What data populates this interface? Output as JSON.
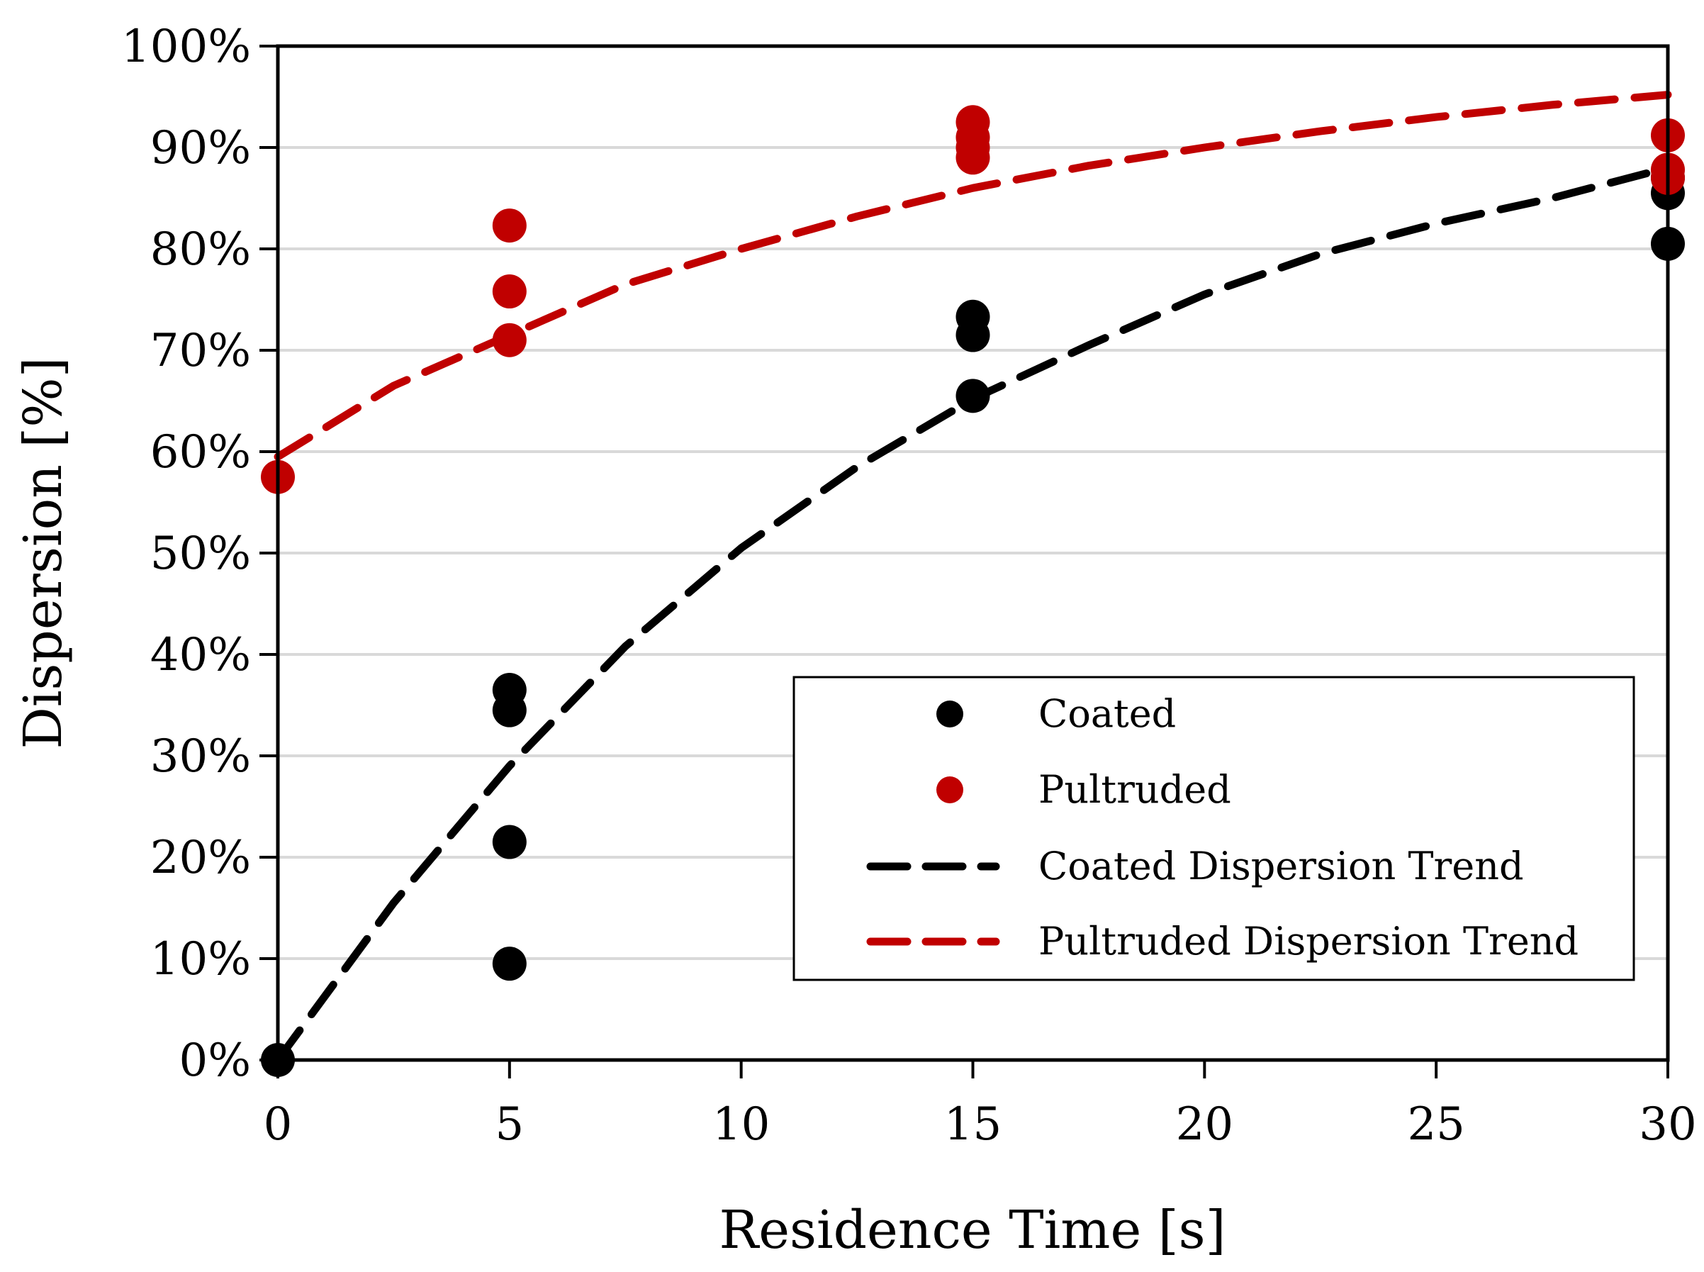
{
  "chart_data": {
    "type": "scatter",
    "title": "",
    "xlabel": "Residence Time [s]",
    "ylabel": "Dispersion [%]",
    "xlim": [
      0,
      30
    ],
    "ylim": [
      0,
      100
    ],
    "x_ticks": [
      "0",
      "5",
      "10",
      "15",
      "20",
      "25",
      "30"
    ],
    "y_ticks": [
      "0%",
      "10%",
      "20%",
      "30%",
      "40%",
      "50%",
      "60%",
      "70%",
      "80%",
      "90%",
      "100%"
    ],
    "grid": "horizontal",
    "legend_position": "bottom-right",
    "colors": {
      "coated": "#000000",
      "pultruded": "#c00000",
      "grid": "#d9d9d9"
    },
    "series": [
      {
        "name": "Coated",
        "kind": "points",
        "color": "#000000",
        "points": [
          [
            0,
            0
          ],
          [
            5,
            9.5
          ],
          [
            5,
            21.5
          ],
          [
            5,
            34.5
          ],
          [
            5,
            36.5
          ],
          [
            15,
            65.5
          ],
          [
            15,
            71.5
          ],
          [
            15,
            73.3
          ],
          [
            30,
            80.5
          ],
          [
            30,
            85.5
          ],
          [
            30,
            87
          ]
        ]
      },
      {
        "name": "Pultruded",
        "kind": "points",
        "color": "#c00000",
        "points": [
          [
            0,
            57.5
          ],
          [
            5,
            71
          ],
          [
            5,
            75.8
          ],
          [
            5,
            82.3
          ],
          [
            15,
            89
          ],
          [
            15,
            90
          ],
          [
            15,
            91
          ],
          [
            15,
            92.5
          ],
          [
            30,
            87
          ],
          [
            30,
            87.8
          ],
          [
            30,
            91.2
          ]
        ]
      },
      {
        "name": "Coated Dispersion Trend",
        "kind": "dashed-line",
        "color": "#000000",
        "points": [
          [
            0,
            0
          ],
          [
            2.5,
            15.5
          ],
          [
            5,
            29
          ],
          [
            7.5,
            40.8
          ],
          [
            10,
            50.5
          ],
          [
            12.5,
            58.5
          ],
          [
            15,
            65.2
          ],
          [
            17.5,
            70.5
          ],
          [
            20,
            75.5
          ],
          [
            22.5,
            79.5
          ],
          [
            25,
            82.5
          ],
          [
            27.5,
            85
          ],
          [
            30,
            88
          ]
        ]
      },
      {
        "name": "Pultruded Dispersion Trend",
        "kind": "dashed-line",
        "color": "#c00000",
        "points": [
          [
            0,
            59.5
          ],
          [
            2.5,
            66.5
          ],
          [
            5,
            71.5
          ],
          [
            7.5,
            76.5
          ],
          [
            10,
            80
          ],
          [
            12.5,
            83.2
          ],
          [
            15,
            86
          ],
          [
            17.5,
            88.2
          ],
          [
            20,
            90
          ],
          [
            22.5,
            91.6
          ],
          [
            25,
            93
          ],
          [
            27.5,
            94.2
          ],
          [
            30,
            95.2
          ]
        ]
      }
    ]
  }
}
